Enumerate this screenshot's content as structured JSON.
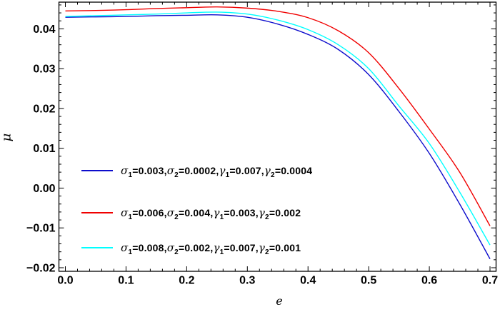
{
  "chart_data": {
    "type": "line",
    "title": "",
    "xlabel": "e",
    "ylabel": "μ",
    "xlim": [
      -0.0106,
      0.71
    ],
    "ylim": [
      -0.0209,
      0.0467
    ],
    "grid": false,
    "frame": true,
    "x_major_ticks": [
      0.0,
      0.1,
      0.2,
      0.3,
      0.4,
      0.5,
      0.6,
      0.7
    ],
    "x_tick_labels": [
      "0.0",
      "0.1",
      "0.2",
      "0.3",
      "0.4",
      "0.5",
      "0.6",
      "0.7"
    ],
    "x_minor_step": 0.02,
    "y_major_ticks": [
      -0.02,
      -0.01,
      0.0,
      0.01,
      0.02,
      0.03,
      0.04
    ],
    "y_tick_labels": [
      "−0.02",
      "−0.01",
      "0.00",
      "0.01",
      "0.02",
      "0.03",
      "0.04"
    ],
    "y_minor_step": 0.002,
    "x": [
      0.0,
      0.05,
      0.1,
      0.15,
      0.2,
      0.25,
      0.3,
      0.35,
      0.4,
      0.45,
      0.5,
      0.55,
      0.6,
      0.65,
      0.7
    ],
    "series": [
      {
        "name": "σ₁=0.003, σ₂=0.0002, γ₁=0.007, γ₂=0.0004",
        "color": "#0d0dcc",
        "values": [
          0.0429,
          0.043,
          0.0431,
          0.0433,
          0.0434,
          0.0435,
          0.0429,
          0.0412,
          0.0386,
          0.0348,
          0.0285,
          0.0192,
          0.0087,
          -0.004,
          -0.0178
        ]
      },
      {
        "name": "σ₁=0.006, σ₂=0.004, γ₁=0.003, γ₂=0.002",
        "color": "#f00000",
        "values": [
          0.0445,
          0.0446,
          0.0448,
          0.0451,
          0.0453,
          0.0455,
          0.0452,
          0.0444,
          0.0428,
          0.0395,
          0.034,
          0.025,
          0.0148,
          0.004,
          -0.0095
        ]
      },
      {
        "name": "σ₁=0.008, σ₂=0.002, γ₁=0.007, γ₂=0.001",
        "color": "#00ffff",
        "values": [
          0.0431,
          0.0433,
          0.0435,
          0.0437,
          0.044,
          0.0442,
          0.0437,
          0.0422,
          0.0398,
          0.036,
          0.03,
          0.0206,
          0.0112,
          -0.001,
          -0.0143
        ]
      }
    ],
    "legend": {
      "position": "inside-lower-left",
      "entries": [
        {
          "color": "#0d0dcc",
          "parts": [
            [
              "σ",
              "1",
              "0.003"
            ],
            [
              "σ",
              "2",
              "0.0002"
            ],
            [
              "γ",
              "1",
              "0.007"
            ],
            [
              "γ",
              "2",
              "0.0004"
            ]
          ]
        },
        {
          "color": "#f00000",
          "parts": [
            [
              "σ",
              "1",
              "0.006"
            ],
            [
              "σ",
              "2",
              "0.004"
            ],
            [
              "γ",
              "1",
              "0.003"
            ],
            [
              "γ",
              "2",
              "0.002"
            ]
          ]
        },
        {
          "color": "#00ffff",
          "parts": [
            [
              "σ",
              "1",
              "0.008"
            ],
            [
              "σ",
              "2",
              "0.002"
            ],
            [
              "γ",
              "1",
              "0.007"
            ],
            [
              "γ",
              "2",
              "0.001"
            ]
          ]
        }
      ]
    }
  }
}
